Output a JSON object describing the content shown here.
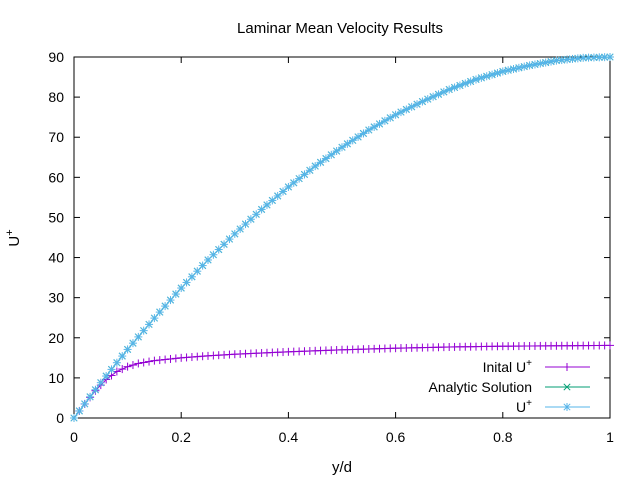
{
  "chart_data": {
    "type": "line",
    "title": "Laminar Mean Velocity Results",
    "xlabel": "y/d",
    "ylabel": "U+",
    "xlim": [
      0,
      1
    ],
    "ylim": [
      0,
      90
    ],
    "xticks": [
      "0",
      "0.2",
      "0.4",
      "0.6",
      "0.8",
      "1"
    ],
    "yticks": [
      "0",
      "10",
      "20",
      "30",
      "40",
      "50",
      "60",
      "70",
      "80",
      "90"
    ],
    "grid": false,
    "legend_position": "bottom-right",
    "series": [
      {
        "name": "Inital U+",
        "marker": "plus",
        "color": "#9400d3",
        "x": [
          0,
          0.02,
          0.04,
          0.06,
          0.08,
          0.1,
          0.12,
          0.15,
          0.2,
          0.25,
          0.3,
          0.4,
          0.5,
          0.6,
          0.7,
          0.8,
          0.9,
          1.0
        ],
        "y": [
          0,
          3.5,
          6.8,
          9.6,
          11.6,
          12.8,
          13.6,
          14.3,
          15.0,
          15.5,
          15.9,
          16.5,
          17.0,
          17.4,
          17.7,
          17.9,
          18.0,
          18.1
        ]
      },
      {
        "name": "Analytic Solution",
        "marker": "x",
        "color": "#009e73",
        "x": [
          0,
          0.05,
          0.1,
          0.15,
          0.2,
          0.25,
          0.3,
          0.35,
          0.4,
          0.45,
          0.5,
          0.55,
          0.6,
          0.65,
          0.7,
          0.75,
          0.8,
          0.85,
          0.9,
          0.95,
          1.0
        ],
        "y": [
          0,
          8.8,
          17.1,
          24.9,
          32.4,
          39.4,
          45.9,
          52.0,
          57.6,
          62.8,
          67.5,
          71.8,
          75.6,
          78.9,
          81.9,
          84.4,
          86.4,
          87.9,
          89.1,
          89.8,
          90.0
        ]
      },
      {
        "name": "U+",
        "marker": "star",
        "color": "#56b4e9",
        "x": [
          0,
          0.05,
          0.1,
          0.15,
          0.2,
          0.25,
          0.3,
          0.35,
          0.4,
          0.45,
          0.5,
          0.55,
          0.6,
          0.65,
          0.7,
          0.75,
          0.8,
          0.85,
          0.9,
          0.95,
          1.0
        ],
        "y": [
          0,
          8.8,
          17.1,
          24.9,
          32.4,
          39.4,
          45.9,
          52.0,
          57.6,
          62.8,
          67.5,
          71.8,
          75.6,
          78.9,
          81.9,
          84.4,
          86.4,
          87.9,
          89.1,
          89.8,
          90.0
        ]
      }
    ]
  }
}
